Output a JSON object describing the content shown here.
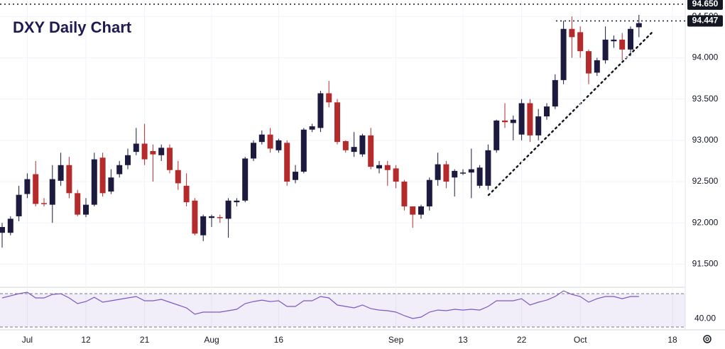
{
  "chart_data": [
    {
      "type": "candlestick",
      "title": "DXY Daily Chart",
      "categories": [
        null,
        null,
        null,
        "Jul",
        null,
        null,
        null,
        null,
        null,
        null,
        "12",
        null,
        null,
        null,
        null,
        null,
        null,
        "21",
        null,
        null,
        null,
        null,
        null,
        null,
        null,
        "Aug",
        null,
        null,
        null,
        null,
        null,
        null,
        null,
        "16",
        null,
        null,
        null,
        null,
        null,
        null,
        null,
        null,
        null,
        null,
        null,
        null,
        null,
        "Sep",
        null,
        null,
        null,
        null,
        null,
        null,
        null,
        "13",
        null,
        null,
        null,
        null,
        null,
        null,
        "22",
        null,
        null,
        null,
        null,
        null,
        null,
        "Oct",
        null,
        null,
        null,
        null,
        null,
        null,
        null,
        null,
        null,
        null,
        "18"
      ],
      "open": [
        91.88,
        91.88,
        92.08,
        92.35,
        92.59,
        92.24,
        92.22,
        92.51,
        92.7,
        92.36,
        92.1,
        92.22,
        92.79,
        92.38,
        92.59,
        92.7,
        92.86,
        92.96,
        92.87,
        92.82,
        92.91,
        92.64,
        92.45,
        92.27,
        91.85,
        92.06,
        92.07,
        92.05,
        92.25,
        92.27,
        92.78,
        92.98,
        93.07,
        92.88,
        92.97,
        92.52,
        92.62,
        93.13,
        93.15,
        93.57,
        93.46,
        92.99,
        92.86,
        92.83,
        93.06,
        92.66,
        92.7,
        92.66,
        92.5,
        92.2,
        92.1,
        92.2,
        92.52,
        92.71,
        92.55,
        92.6,
        92.61,
        92.45,
        92.45,
        92.88,
        93.24,
        93.21,
        93.07,
        93.45,
        93.06,
        93.29,
        93.41,
        93.73,
        94.35,
        94.31,
        94.08,
        93.82,
        93.97,
        94.2,
        94.22,
        94.1,
        94.37,
        null,
        null,
        null,
        null
      ],
      "high": [
        92.0,
        92.08,
        92.45,
        92.6,
        92.75,
        92.3,
        92.7,
        92.85,
        92.8,
        92.4,
        92.3,
        92.85,
        92.85,
        92.65,
        92.75,
        92.9,
        93.15,
        93.2,
        92.95,
        92.95,
        92.95,
        92.75,
        92.6,
        92.3,
        92.1,
        92.1,
        92.1,
        92.3,
        92.3,
        92.8,
        93.0,
        93.12,
        93.15,
        93.02,
        93.0,
        92.7,
        93.15,
        93.2,
        93.6,
        93.72,
        93.5,
        93.0,
        93.1,
        93.08,
        93.15,
        92.75,
        92.75,
        92.7,
        92.52,
        92.2,
        92.22,
        92.55,
        92.85,
        92.75,
        92.65,
        92.65,
        92.9,
        92.7,
        92.95,
        93.25,
        93.45,
        93.3,
        93.5,
        93.5,
        93.38,
        93.45,
        93.8,
        94.45,
        94.5,
        94.38,
        94.1,
        94.0,
        94.38,
        94.27,
        94.3,
        94.38,
        94.52,
        null,
        null,
        null,
        null
      ],
      "low": [
        91.7,
        91.85,
        92.02,
        92.3,
        92.2,
        92.2,
        92.0,
        92.45,
        92.3,
        92.08,
        92.07,
        92.2,
        92.32,
        92.35,
        92.55,
        92.65,
        92.82,
        92.7,
        92.5,
        92.75,
        92.6,
        92.4,
        92.2,
        91.85,
        91.78,
        91.95,
        92.0,
        91.82,
        92.2,
        92.25,
        92.75,
        92.95,
        92.85,
        92.85,
        92.45,
        92.48,
        92.6,
        93.1,
        93.1,
        93.4,
        92.95,
        92.85,
        92.8,
        92.8,
        92.65,
        92.6,
        92.45,
        92.42,
        92.15,
        91.94,
        92.05,
        92.15,
        92.45,
        92.42,
        92.32,
        92.58,
        92.3,
        92.42,
        92.4,
        92.85,
        93.15,
        93.0,
        93.0,
        92.98,
        93.0,
        93.25,
        93.38,
        93.68,
        94.0,
        94.0,
        93.68,
        93.78,
        93.93,
        94.12,
        93.97,
        94.02,
        94.25,
        null,
        null,
        null,
        null
      ],
      "close": [
        91.95,
        92.05,
        92.34,
        92.53,
        92.23,
        92.23,
        92.53,
        92.7,
        92.36,
        92.1,
        92.22,
        92.77,
        92.36,
        92.55,
        92.7,
        92.82,
        92.96,
        92.77,
        92.83,
        92.91,
        92.64,
        92.48,
        92.25,
        91.87,
        92.08,
        92.08,
        92.06,
        92.27,
        92.27,
        92.78,
        92.97,
        93.07,
        92.9,
        93.0,
        92.5,
        92.62,
        93.13,
        93.17,
        93.57,
        93.46,
        92.98,
        92.88,
        92.92,
        93.06,
        92.68,
        92.7,
        92.64,
        92.5,
        92.2,
        92.1,
        92.2,
        92.52,
        92.71,
        92.5,
        92.63,
        92.61,
        92.65,
        92.67,
        92.88,
        93.24,
        93.22,
        93.25,
        93.45,
        93.06,
        93.29,
        93.41,
        93.73,
        94.35,
        94.25,
        94.08,
        93.81,
        93.97,
        94.22,
        94.22,
        94.1,
        94.35,
        94.42,
        null,
        null,
        null,
        null
      ],
      "up_color": "#1c1a3f",
      "down_color": "#b52a2a",
      "ylim": [
        91.22,
        94.7
      ],
      "yticks": [
        {
          "value": 91.5,
          "label": "91.500"
        },
        {
          "value": 92,
          "label": "92.000"
        },
        {
          "value": 92.5,
          "label": "92.500"
        },
        {
          "value": 93,
          "label": "93.000"
        },
        {
          "value": 93.5,
          "label": "93.500"
        },
        {
          "value": 94,
          "label": "94.000"
        },
        {
          "value": 94.5,
          "label": "94.500"
        }
      ],
      "annotations": [
        {
          "value": 94.65,
          "label": "94.650"
        },
        {
          "value": 94.447,
          "label": "94.447"
        }
      ],
      "grid": true
    },
    {
      "type": "line",
      "color": "#7e57c2",
      "values": [
        64.9,
        67.4,
        70,
        71.7,
        64.9,
        64.9,
        69.1,
        70,
        64.9,
        58.1,
        60.6,
        65.7,
        59.8,
        61.5,
        63.2,
        64.9,
        66.6,
        61.5,
        61.5,
        63.2,
        59.8,
        56.4,
        53,
        45.3,
        47.9,
        47.9,
        47.9,
        49.6,
        51.3,
        58.1,
        60.6,
        62.3,
        60.6,
        61.5,
        54.7,
        54.7,
        61.5,
        61.5,
        66.6,
        64.9,
        56.4,
        54.7,
        53,
        56.4,
        52.1,
        50.4,
        49.6,
        47.9,
        43.6,
        40.2,
        41.9,
        47.9,
        50.4,
        49.6,
        51.3,
        50.4,
        51.3,
        50.4,
        54.7,
        61.5,
        61.5,
        61.5,
        64,
        56.4,
        59.8,
        62.3,
        66.6,
        73.4,
        69.1,
        66.6,
        59.8,
        64,
        66.6,
        66.6,
        64,
        66.6,
        66.6,
        null,
        null,
        null,
        null
      ],
      "band": [
        30,
        70
      ],
      "ylim": [
        26.6,
        77.7
      ],
      "yticks": [
        {
          "value": 40,
          "label": "40.00"
        }
      ]
    }
  ]
}
